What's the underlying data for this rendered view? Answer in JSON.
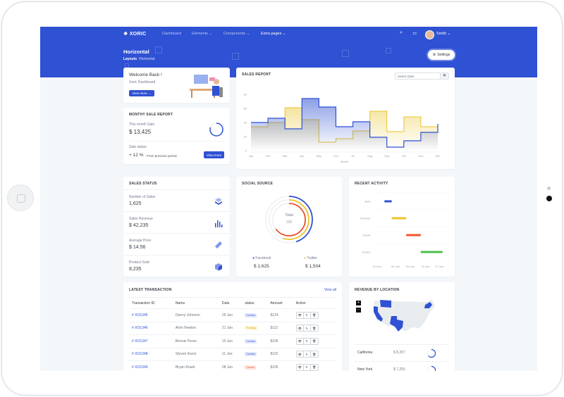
{
  "brand": "XORIC",
  "nav": {
    "items": [
      {
        "label": "Dashboard"
      },
      {
        "label": "Elements"
      },
      {
        "label": "Components"
      },
      {
        "label": "Extra pages"
      }
    ],
    "user": "Smith"
  },
  "page": {
    "title": "Horizontal",
    "breadcrumb": [
      "Layouts",
      "Horizontal"
    ],
    "settings_label": "Settings"
  },
  "welcome": {
    "title": "Welcome Back !",
    "subtitle": "Xoric Dashboard",
    "button": "View more"
  },
  "monthly": {
    "title": "MONTHY SALE REPORT",
    "this_month_label": "This month Sale",
    "this_month_value": "$ 13,425",
    "status_label": "Sale status",
    "status_value": "+ 12 %",
    "status_note": "From previous period",
    "button": "View more",
    "progress_percent": 80
  },
  "sales_report": {
    "title": "SALES REPORT",
    "date_placeholder": "Select Date"
  },
  "chart_data": {
    "type": "area",
    "step": true,
    "title": "",
    "xlabel": "Month",
    "ylabel": "",
    "ylim": [
      0,
      80
    ],
    "yticks": [
      0,
      20,
      40,
      60,
      80
    ],
    "categories": [
      "Jan",
      "Feb",
      "Mar",
      "Apr",
      "May",
      "Jun",
      "Jul",
      "Aug",
      "Sep",
      "Oct",
      "Nov",
      "Dec"
    ],
    "grid": false,
    "series": [
      {
        "color": "#2f51d3",
        "values": [
          40,
          46,
          31,
          74,
          62,
          34,
          41,
          19,
          5,
          14,
          26,
          38
        ]
      },
      {
        "color": "#e8c42a",
        "values": [
          34,
          40,
          61,
          44,
          12,
          17,
          28,
          56,
          27,
          48,
          34,
          34
        ]
      }
    ]
  },
  "sales_status": {
    "title": "SALES STATUS",
    "items": [
      {
        "label": "Number of Sales",
        "value": "1,625",
        "icon": "layers-icon"
      },
      {
        "label": "Sales Revenue",
        "value": "$ 42,235",
        "icon": "bar-chart-icon"
      },
      {
        "label": "Average Price",
        "value": "$ 14.56",
        "icon": "ticket-icon"
      },
      {
        "label": "Product Sold",
        "value": "8,235",
        "icon": "box-icon"
      }
    ]
  },
  "social": {
    "title": "SOCIAL SOURCE",
    "total_label": "Total",
    "total_value": "166",
    "rings": [
      {
        "color": "#2f51d3",
        "fraction": 0.45
      },
      {
        "color": "#e8c42a",
        "fraction": 0.55
      },
      {
        "color": "#f0532e",
        "fraction": 0.65
      }
    ],
    "legend": [
      {
        "name": "Facebook",
        "value": "$ 1,625",
        "color": "#2f51d3"
      },
      {
        "name": "Twitter",
        "value": "$ 1,504",
        "color": "#e8c42a"
      }
    ]
  },
  "activity": {
    "title": "RECENT ACTIVITY",
    "ticks": [
      "31 Dec",
      "05 Jan",
      "09 Jan",
      "13 Jan",
      "17 Jan"
    ],
    "rows": [
      {
        "name": "Jack",
        "start": "2 Jan",
        "end": "4 Jan",
        "color": "#2f51d3"
      },
      {
        "name": "Thomas",
        "start": "4 Jan",
        "end": "8 Jan",
        "color": "#e8c42a"
      },
      {
        "name": "David",
        "start": "8 Jan",
        "end": "12 Jan",
        "color": "#f0532e"
      },
      {
        "name": "James",
        "start": "12 Jan",
        "end": "18 Jan",
        "color": "#4cbf4c"
      }
    ]
  },
  "transactions": {
    "title": "LATEST TRANSACTION",
    "view_all": "View all",
    "columns": [
      "Transaction ID",
      "Name",
      "Date",
      "status",
      "Amount",
      "Action"
    ],
    "rows": [
      {
        "id": "# XO1345",
        "name": "Danny Johnson",
        "date": "26 Jan",
        "status": "Confirm",
        "amount": "$124"
      },
      {
        "id": "# XO1346",
        "name": "Alvin Newton",
        "date": "21 Jan",
        "status": "Pending",
        "amount": "$112"
      },
      {
        "id": "# XO1347",
        "name": "Bennie Perez",
        "date": "15 Jan",
        "status": "Confirm",
        "amount": "$106"
      },
      {
        "id": "# XO1348",
        "name": "Steven Kwon",
        "date": "11 Jan",
        "status": "Confirm",
        "amount": "$115"
      },
      {
        "id": "# XO1349",
        "name": "Bryan Roark",
        "date": "08 Jan",
        "status": "Cancel",
        "amount": "$105"
      }
    ]
  },
  "revenue": {
    "title": "REVENUE BY LOCATION",
    "zoom_in": "+",
    "zoom_out": "−",
    "rows": [
      {
        "location": "California",
        "value": "$ 8,257"
      },
      {
        "location": "New York",
        "value": "$ 7,253"
      }
    ]
  }
}
